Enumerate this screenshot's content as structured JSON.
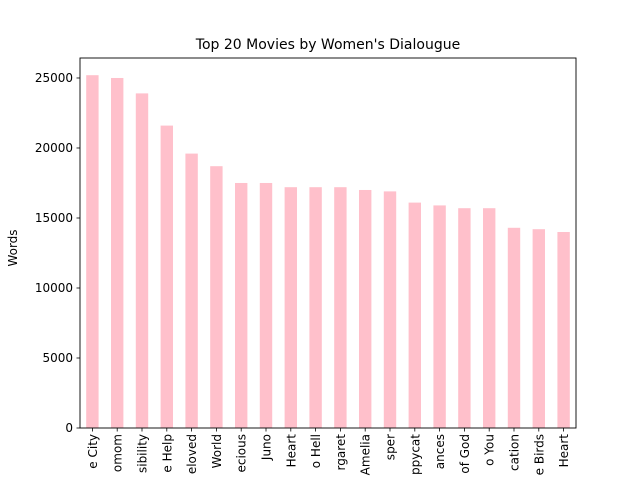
{
  "chart_data": {
    "type": "bar",
    "title": "Top 20 Movies by Women's Dialougue",
    "xlabel": "",
    "ylabel": "Words",
    "ylim": [
      0,
      26428
    ],
    "yticks": [
      0,
      5000,
      10000,
      15000,
      20000,
      25000
    ],
    "ytick_labels": [
      "0",
      "5000",
      "10000",
      "15000",
      "20000",
      "25000"
    ],
    "categories": [
      "e City",
      "omom",
      "sibility",
      "e Help",
      "eloved",
      "World",
      "ecious",
      "Juno",
      "Heart",
      "o Hell",
      "rgaret",
      "Amelia",
      "sper",
      "ppycat",
      "ances",
      "of God",
      "o You",
      "cation",
      "e Birds",
      "Heart"
    ],
    "values": [
      25200,
      25000,
      23900,
      21600,
      19600,
      18700,
      17500,
      17500,
      17200,
      17200,
      17200,
      17000,
      16900,
      16100,
      15900,
      15700,
      15700,
      14300,
      14200,
      14000
    ],
    "bar_color": "#ffc0cb",
    "grid": false,
    "legend": "none"
  }
}
